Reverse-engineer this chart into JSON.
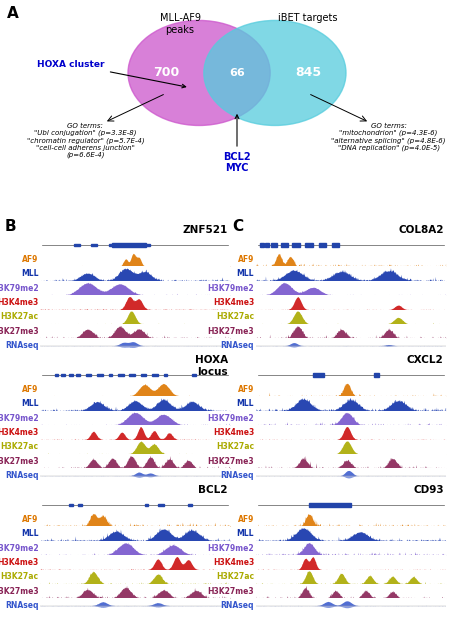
{
  "panel_A": {
    "venn_left_label": "MLL-AF9\npeaks",
    "venn_right_label": "iBET targets",
    "venn_left_num": "700",
    "venn_overlap_num": "66",
    "venn_right_num": "845",
    "hoxa_label": "HOXA cluster",
    "bcl2_myc_label": "BCL2\nMYC",
    "left_go": "GO terms:\n\"Ubl conjugation\" (p=3.3E-8)\n\"chromatin regulator\" (p=5.7E-4)\n\"cell-cell adherens junction\"\n(p=6.6E-4)",
    "right_go": "GO terms:\n\"mitochondrion\" (p=4.3E-6)\n\"alternative splicing\" (p=4.8E-6)\n\"DNA replication\" (p=4.0E-5)",
    "left_ellipse_color": "#cc55cc",
    "right_ellipse_color": "#55ccdd",
    "hoxa_color": "#0000cc",
    "bcl2_myc_color": "#0000cc"
  },
  "track_labels": [
    "AF9",
    "MLL",
    "H3K79me2",
    "H3K4me3",
    "H3K27ac",
    "H3K27me3",
    "RNAseq"
  ],
  "track_colors": [
    "#dd7700",
    "#1133aa",
    "#7755cc",
    "#cc1111",
    "#aaaa00",
    "#882255",
    "#3355cc"
  ],
  "bg_color": "#ffffff",
  "label_fontsize": 5.5,
  "title_fontsize": 7.5
}
